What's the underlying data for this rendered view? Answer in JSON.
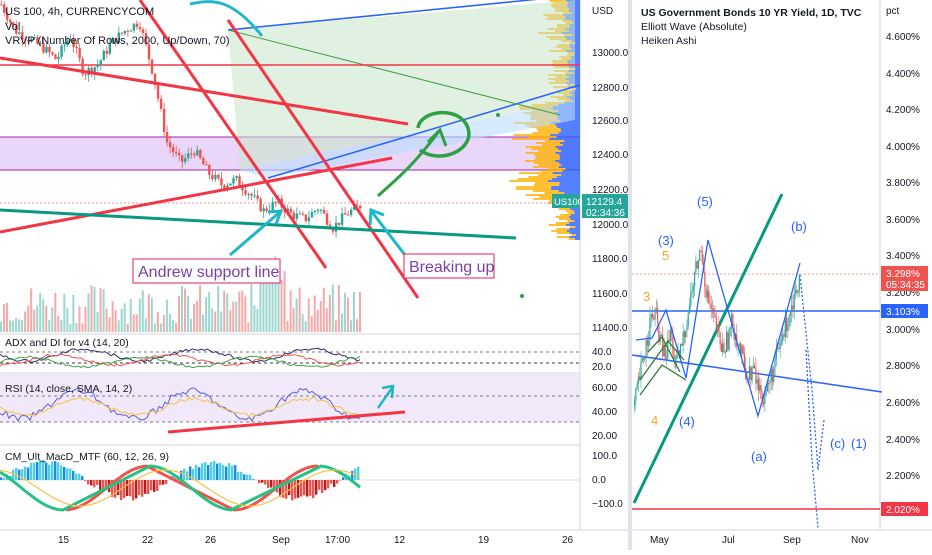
{
  "colors": {
    "bull": "#26a69a",
    "bear": "#ef5350",
    "red_line": "#f23645",
    "teal_line": "#089981",
    "blue_line": "#2962ff",
    "purple_zone": "#d7b4f3",
    "green_annot": "#2ea043",
    "cyan_annot": "#1fb7c9",
    "label_box": "#9c27b0",
    "vp_blue": "#2962ff",
    "vp_yellow": "#ffb000",
    "ew_blue": "#2962ff",
    "ew_orange": "#f6a623"
  },
  "left": {
    "title": "US 100, 4h, CURRENCYCOM",
    "indicator_vol": "Vol",
    "indicator_vrvp": "VRVP (Number Of Rows, 2000, Up/Down, 70)",
    "currency": "USD",
    "price_ticks": [
      "13000.0",
      "12800.0",
      "12600.0",
      "12400.0",
      "12200.0",
      "12000.0",
      "11800.0",
      "11600.0",
      "11400.0"
    ],
    "price_badge_symbol": "US100",
    "price_badge_value": "12129.4",
    "price_badge_time": "02:34:36",
    "adx": {
      "title": "ADX and DI for v4 (14, 20)",
      "ticks": [
        "40.0",
        "20.0"
      ]
    },
    "rsi": {
      "title": "RSI (14, close, SMA, 14, 2)",
      "ticks": [
        "60.00",
        "40.00",
        "20.00"
      ]
    },
    "macd": {
      "title": "CM_Ult_MacD_MTF (60, 12, 26, 9)",
      "ticks": [
        "100.0",
        "0.0",
        "−100.0"
      ]
    },
    "x_ticks": [
      "15",
      "22",
      "26",
      "Sep",
      "17:00",
      "12",
      "19",
      "26"
    ],
    "annotation_support": "Andrew support line",
    "annotation_breaking": "Breaking up",
    "chart_data": {
      "type": "candlestick",
      "title": "US 100, 4h, CURRENCYCOM",
      "ylabel": "USD",
      "ylim": [
        11300,
        13200
      ],
      "x_ticks": [
        "15",
        "22",
        "26",
        "Sep",
        "17:00",
        "12",
        "19",
        "26"
      ],
      "last_price": 12129.4,
      "price_ticks": [
        13000,
        12800,
        12600,
        12400,
        12200,
        12000,
        11800,
        11600,
        11400
      ],
      "approx_close_path": [
        13300,
        13150,
        13100,
        13050,
        12980,
        13120,
        12900,
        12950,
        13080,
        13150,
        13200,
        12900,
        12500,
        12380,
        12450,
        12320,
        12250,
        12280,
        12200,
        12100,
        12150,
        12080,
        12050,
        12120,
        12000,
        12080,
        12129.4
      ],
      "annotations": [
        "Andrew support line",
        "Breaking up"
      ]
    }
  },
  "right": {
    "title": "US Government Bonds 10 YR Yield, 1D, TVC",
    "subtitle_1": "Elliott Wave (Absolute)",
    "subtitle_2": "Heiken Ashi",
    "unit": "pct",
    "y_ticks": [
      "4.600%",
      "4.400%",
      "4.200%",
      "4.000%",
      "3.800%",
      "3.600%",
      "3.400%",
      "3.200%",
      "3.000%",
      "2.800%",
      "2.600%",
      "2.400%",
      "2.200%"
    ],
    "badge_price": "3.298%",
    "badge_time": "05:34:35",
    "badge_blue": "3.103%",
    "badge_red": "2.020%",
    "x_ticks": [
      "May",
      "Jul",
      "Sep",
      "Nov"
    ],
    "wave_labels": [
      "(3)",
      "5",
      "3",
      "4",
      "(4)",
      "(5)",
      "(b)",
      "(a)",
      "(c)",
      "(1)"
    ],
    "chart_data": {
      "type": "candlestick",
      "title": "US Government Bonds 10 YR Yield, 1D, TVC",
      "ylabel": "pct",
      "ylim": [
        1.8,
        4.8
      ],
      "x_ticks": [
        "May",
        "Jul",
        "Sep",
        "Nov"
      ],
      "y_ticks": [
        4.6,
        4.4,
        4.2,
        4.0,
        3.8,
        3.6,
        3.4,
        3.2,
        3.0,
        2.8,
        2.6,
        2.4,
        2.2
      ],
      "last_value": 3.298,
      "horizontal_levels": [
        3.103,
        2.02
      ],
      "approx_close_path": [
        2.6,
        2.75,
        2.9,
        3.05,
        3.1,
        2.95,
        2.85,
        3.0,
        2.8,
        2.9,
        3.05,
        3.2,
        3.35,
        3.45,
        3.2,
        3.1,
        3.0,
        2.9,
        2.95,
        3.05,
        2.95,
        2.85,
        2.75,
        2.8,
        2.7,
        2.65,
        2.7,
        2.8,
        2.9,
        3.0,
        3.1,
        3.2,
        3.3
      ],
      "wave_labels": [
        "(3)",
        "5",
        "3",
        "4",
        "(4)",
        "(5)",
        "(b)",
        "(a)",
        "(c)",
        "(1)"
      ]
    }
  }
}
